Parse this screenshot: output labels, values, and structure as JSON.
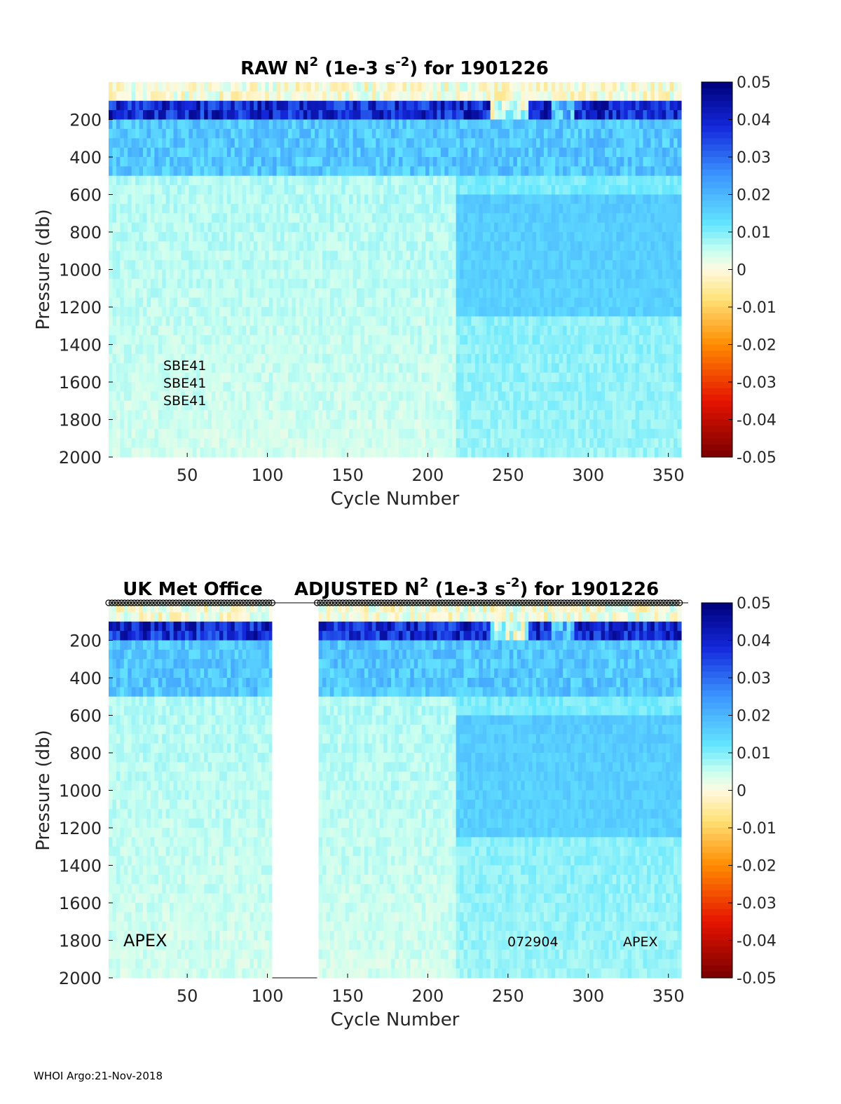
{
  "chart_data": [
    {
      "type": "heatmap",
      "title_main": "RAW N",
      "title_sup": "2",
      "title_units_pre": " (1e-3 s",
      "title_units_sup": "-2",
      "title_units_post": ") for 1901226",
      "xlabel": "Cycle Number",
      "ylabel": "Pressure (db)",
      "xlim": [
        1,
        358
      ],
      "ylim": [
        2000,
        0
      ],
      "x_ticks": [
        50,
        100,
        150,
        200,
        250,
        300,
        350
      ],
      "y_ticks": [
        200,
        400,
        600,
        800,
        1000,
        1200,
        1400,
        1600,
        1800,
        2000
      ],
      "annotations": [
        "SBE41",
        "SBE41",
        "SBE41"
      ],
      "gap_cycles": [],
      "colorbar": {
        "limits": [
          -0.05,
          0.05
        ],
        "ticks": [
          "0.05",
          "0.04",
          "0.03",
          "0.02",
          "0.01",
          "0",
          "-0.01",
          "-0.02",
          "-0.03",
          "-0.04",
          "-0.05"
        ]
      }
    },
    {
      "type": "heatmap",
      "left_label": "UK Met Office",
      "title_main": "ADJUSTED N",
      "title_sup": "2",
      "title_units_pre": " (1e-3 s",
      "title_units_sup": "-2",
      "title_units_post": ") for 1901226",
      "xlabel": "Cycle Number",
      "ylabel": "Pressure (db)",
      "xlim": [
        1,
        358
      ],
      "ylim": [
        2000,
        0
      ],
      "x_ticks": [
        50,
        100,
        150,
        200,
        250,
        300,
        350
      ],
      "y_ticks": [
        200,
        400,
        600,
        800,
        1000,
        1200,
        1400,
        1600,
        1800,
        2000
      ],
      "annotations": [
        "APEX",
        "072904",
        "APEX"
      ],
      "gap_cycles": [
        103,
        131
      ],
      "colorbar": {
        "limits": [
          -0.05,
          0.05
        ],
        "ticks": [
          "0.05",
          "0.04",
          "0.03",
          "0.02",
          "0.01",
          "0",
          "-0.01",
          "-0.02",
          "-0.03",
          "-0.04",
          "-0.05"
        ]
      }
    }
  ],
  "footer": "WHOI Argo:21-Nov-2018"
}
